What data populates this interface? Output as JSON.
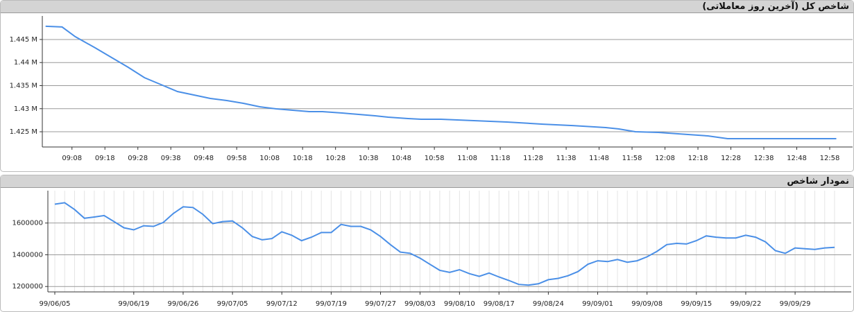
{
  "chart_data": [
    {
      "type": "line",
      "title": "شاخص کل (آخرین روز معاملاتی)",
      "xlim": [
        539,
        782
      ],
      "xticks": [
        {
          "value": 548,
          "label": "09:08"
        },
        {
          "value": 558,
          "label": "09:18"
        },
        {
          "value": 568,
          "label": "09:28"
        },
        {
          "value": 578,
          "label": "09:38"
        },
        {
          "value": 588,
          "label": "09:48"
        },
        {
          "value": 598,
          "label": "09:58"
        },
        {
          "value": 608,
          "label": "10:08"
        },
        {
          "value": 618,
          "label": "10:18"
        },
        {
          "value": 628,
          "label": "10:28"
        },
        {
          "value": 638,
          "label": "10:38"
        },
        {
          "value": 648,
          "label": "10:48"
        },
        {
          "value": 658,
          "label": "10:58"
        },
        {
          "value": 668,
          "label": "11:08"
        },
        {
          "value": 678,
          "label": "11:18"
        },
        {
          "value": 688,
          "label": "11:28"
        },
        {
          "value": 698,
          "label": "11:38"
        },
        {
          "value": 708,
          "label": "11:48"
        },
        {
          "value": 718,
          "label": "11:58"
        },
        {
          "value": 728,
          "label": "12:08"
        },
        {
          "value": 738,
          "label": "12:18"
        },
        {
          "value": 748,
          "label": "12:28"
        },
        {
          "value": 758,
          "label": "12:38"
        },
        {
          "value": 768,
          "label": "12:48"
        },
        {
          "value": 778,
          "label": "12:58"
        }
      ],
      "ylim": [
        1421700,
        1450100
      ],
      "yticks": [
        {
          "value": 1425000,
          "label": "1.425 M"
        },
        {
          "value": 1430000,
          "label": "1.43 M"
        },
        {
          "value": 1435000,
          "label": "1.435 M"
        },
        {
          "value": 1440000,
          "label": "1.44 M"
        },
        {
          "value": 1445000,
          "label": "1.445 M"
        }
      ],
      "grid": true,
      "x": [
        540,
        545,
        549,
        555,
        560,
        565,
        570,
        575,
        580,
        585,
        590,
        595,
        600,
        605,
        610,
        615,
        620,
        624,
        630,
        635,
        640,
        644,
        650,
        654,
        660,
        670,
        680,
        691,
        700,
        710,
        714,
        719,
        726,
        735,
        741,
        747,
        756,
        766,
        780
      ],
      "series": [
        {
          "color": "#4a8fe7",
          "values": [
            1447860,
            1447710,
            1445600,
            1443200,
            1441100,
            1439000,
            1436730,
            1435230,
            1433720,
            1432970,
            1432220,
            1431770,
            1431170,
            1430410,
            1429960,
            1429660,
            1429360,
            1429360,
            1429060,
            1428760,
            1428460,
            1428160,
            1427860,
            1427710,
            1427710,
            1427410,
            1427110,
            1426650,
            1426350,
            1425900,
            1425600,
            1425000,
            1424850,
            1424400,
            1424100,
            1423500,
            1423500,
            1423500,
            1423500
          ]
        }
      ]
    },
    {
      "type": "line",
      "title": "نمودار شاخص",
      "categories": [
        "99/06/05",
        null,
        null,
        null,
        null,
        null,
        null,
        null,
        "99/06/19",
        null,
        null,
        null,
        null,
        "99/06/26",
        null,
        null,
        null,
        null,
        "99/07/05",
        null,
        null,
        null,
        null,
        "99/07/12",
        null,
        null,
        null,
        null,
        "99/07/19",
        null,
        null,
        null,
        null,
        "99/07/27",
        null,
        null,
        null,
        "99/08/03",
        null,
        null,
        null,
        "99/08/10",
        null,
        null,
        null,
        "99/08/17",
        null,
        null,
        null,
        null,
        "99/08/24",
        null,
        null,
        null,
        null,
        "99/09/01",
        null,
        null,
        null,
        null,
        "99/09/08",
        null,
        null,
        null,
        null,
        "99/09/15",
        null,
        null,
        null,
        null,
        "99/09/22",
        null,
        null,
        null,
        null,
        "99/09/29",
        null,
        null,
        null,
        null
      ],
      "ylim": [
        1166000,
        1804000
      ],
      "yticks": [
        1200000,
        1400000,
        1600000
      ],
      "grid": true,
      "series": [
        {
          "color": "#4a8fe7",
          "values": [
            1719000,
            1728000,
            1685000,
            1630000,
            1638000,
            1647000,
            1609000,
            1570000,
            1557000,
            1583000,
            1579000,
            1604000,
            1660000,
            1702000,
            1698000,
            1655000,
            1596000,
            1609000,
            1613000,
            1570000,
            1515000,
            1494000,
            1502000,
            1545000,
            1523000,
            1489000,
            1511000,
            1540000,
            1540000,
            1591000,
            1579000,
            1579000,
            1557000,
            1515000,
            1464000,
            1417000,
            1409000,
            1379000,
            1340000,
            1302000,
            1289000,
            1306000,
            1281000,
            1264000,
            1285000,
            1260000,
            1238000,
            1213000,
            1209000,
            1217000,
            1243000,
            1251000,
            1268000,
            1294000,
            1340000,
            1362000,
            1357000,
            1370000,
            1353000,
            1362000,
            1387000,
            1421000,
            1464000,
            1472000,
            1468000,
            1489000,
            1519000,
            1511000,
            1506000,
            1506000,
            1523000,
            1511000,
            1481000,
            1426000,
            1409000,
            1443000,
            1438000,
            1434000,
            1443000,
            1447000
          ]
        }
      ]
    }
  ]
}
